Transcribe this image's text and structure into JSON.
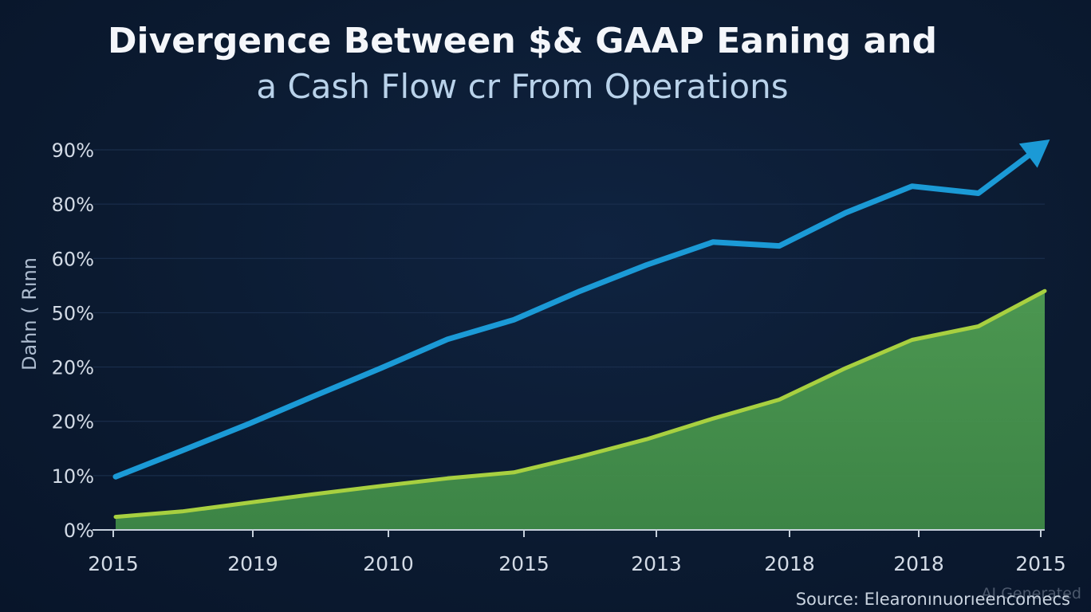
{
  "chart_data": {
    "type": "area",
    "title_line_1": "Divergence Between $& GAAP Eaning and",
    "title_line_2": "a Cash Flow cr From Operations",
    "ylabel": "Dahn ( Rınn",
    "x_tick_labels": [
      "2015",
      "2019",
      "2010",
      "2015",
      "2013",
      "2018",
      "2018",
      "2015"
    ],
    "y_tick_labels": [
      "0%",
      "10%",
      "20%",
      "20%",
      "50%",
      "60%",
      "80%",
      "90%"
    ],
    "ylim": [
      0,
      7
    ],
    "grid": true,
    "x": [
      0,
      0.5,
      1,
      1.5,
      2,
      2.5,
      3,
      3.5,
      4,
      4.5,
      5,
      5.5,
      6,
      6.5,
      7
    ],
    "series": [
      {
        "name": "Cash Flow From Operations",
        "type": "line",
        "color": "#1b9ad6",
        "arrow": true,
        "values": [
          0.98,
          1.46,
          1.95,
          2.47,
          2.98,
          3.51,
          3.87,
          4.4,
          4.88,
          5.3,
          5.23,
          5.84,
          6.33,
          6.2,
          7.12
        ]
      },
      {
        "name": "GAAP Earnings",
        "type": "area",
        "color": "#a8d040",
        "fill": "#4b9a50",
        "values": [
          0.24,
          0.34,
          0.5,
          0.66,
          0.81,
          0.95,
          1.06,
          1.35,
          1.67,
          2.05,
          2.4,
          2.98,
          3.5,
          3.75,
          4.4
        ]
      }
    ]
  },
  "source_text": "Source: Elearonınuorıeencomecs",
  "watermark_text": "AI Generated"
}
